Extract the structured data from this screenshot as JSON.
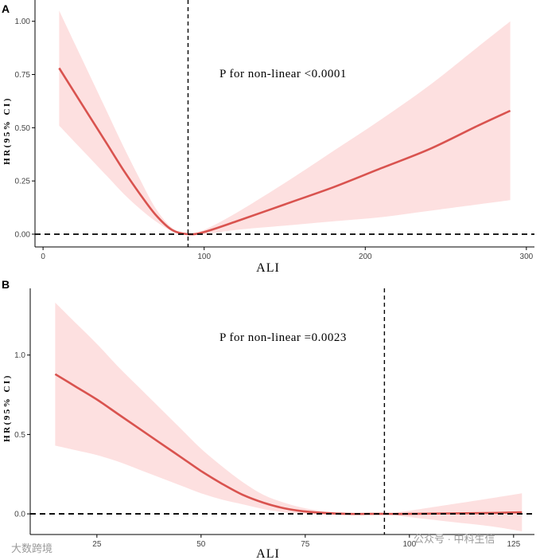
{
  "chart_data": [
    {
      "type": "line",
      "panel": "A",
      "xlabel": "ALI",
      "ylabel": "HR(95% CI)",
      "xlim": [
        -5,
        305
      ],
      "ylim": [
        -0.06,
        1.1
      ],
      "xticks": [
        0,
        100,
        200,
        300
      ],
      "yticks": [
        0.0,
        0.25,
        0.5,
        0.75,
        1.0
      ],
      "ytick_labels": [
        "0.00",
        "0.25",
        "0.50",
        "0.75",
        "1.00"
      ],
      "annotation": "P for non-linear <0.0001",
      "vline_x": 90,
      "hline_y": 0,
      "line_color": "#d9534f",
      "band_color": "#fde0e0",
      "series": [
        {
          "name": "HR",
          "x": [
            10,
            20,
            30,
            40,
            50,
            60,
            70,
            80,
            90,
            100,
            120,
            150,
            180,
            210,
            240,
            270,
            290
          ],
          "y": [
            0.78,
            0.66,
            0.54,
            0.42,
            0.3,
            0.19,
            0.09,
            0.02,
            0.0,
            0.01,
            0.06,
            0.14,
            0.22,
            0.31,
            0.4,
            0.51,
            0.58
          ]
        },
        {
          "name": "95% CI lower",
          "x": [
            10,
            20,
            30,
            40,
            50,
            60,
            70,
            80,
            90,
            100,
            120,
            150,
            180,
            210,
            240,
            270,
            290
          ],
          "y": [
            0.51,
            0.43,
            0.35,
            0.27,
            0.19,
            0.12,
            0.06,
            0.015,
            0.0,
            0.0,
            0.02,
            0.04,
            0.06,
            0.08,
            0.11,
            0.14,
            0.16
          ]
        },
        {
          "name": "95% CI upper",
          "x": [
            10,
            20,
            30,
            40,
            50,
            60,
            70,
            80,
            90,
            100,
            120,
            150,
            180,
            210,
            240,
            270,
            290
          ],
          "y": [
            1.05,
            0.89,
            0.73,
            0.57,
            0.41,
            0.26,
            0.12,
            0.03,
            0.0,
            0.02,
            0.1,
            0.24,
            0.39,
            0.54,
            0.7,
            0.88,
            1.0
          ]
        }
      ]
    },
    {
      "type": "line",
      "panel": "B",
      "xlabel": "ALI",
      "ylabel": "HR(95% CI)",
      "xlim": [
        9,
        130
      ],
      "ylim": [
        -0.13,
        1.42
      ],
      "xticks": [
        25,
        50,
        75,
        100,
        125
      ],
      "yticks": [
        0.0,
        0.5,
        1.0
      ],
      "ytick_labels": [
        "0.0",
        "0.5",
        "1.0"
      ],
      "annotation": "P for non-linear =0.0023",
      "vline_x": 94,
      "hline_y": 0,
      "line_color": "#d9534f",
      "band_color": "#fde0e0",
      "series": [
        {
          "name": "HR",
          "x": [
            15,
            20,
            25,
            30,
            35,
            40,
            45,
            50,
            55,
            60,
            65,
            70,
            75,
            80,
            85,
            90,
            94,
            100,
            110,
            120,
            127
          ],
          "y": [
            0.88,
            0.8,
            0.72,
            0.63,
            0.54,
            0.45,
            0.36,
            0.27,
            0.19,
            0.12,
            0.07,
            0.035,
            0.015,
            0.005,
            0.0,
            0.0,
            0.0,
            0.0,
            0.003,
            0.006,
            0.01
          ]
        },
        {
          "name": "95% CI lower",
          "x": [
            15,
            20,
            25,
            30,
            35,
            40,
            45,
            50,
            55,
            60,
            65,
            70,
            75,
            80,
            85,
            90,
            94,
            100,
            110,
            120,
            127
          ],
          "y": [
            0.43,
            0.4,
            0.37,
            0.33,
            0.28,
            0.23,
            0.18,
            0.13,
            0.09,
            0.06,
            0.03,
            0.01,
            0.0,
            -0.005,
            -0.005,
            0.0,
            0.0,
            -0.02,
            -0.05,
            -0.08,
            -0.11
          ]
        },
        {
          "name": "95% CI upper",
          "x": [
            15,
            20,
            25,
            30,
            35,
            40,
            45,
            50,
            55,
            60,
            65,
            70,
            75,
            80,
            85,
            90,
            94,
            100,
            110,
            120,
            127
          ],
          "y": [
            1.33,
            1.2,
            1.07,
            0.93,
            0.8,
            0.67,
            0.54,
            0.41,
            0.3,
            0.2,
            0.12,
            0.07,
            0.035,
            0.015,
            0.005,
            0.0,
            0.0,
            0.02,
            0.06,
            0.1,
            0.13
          ]
        }
      ]
    }
  ],
  "watermarks": {
    "left": "大数跨境",
    "right": "公众号 · 中科生信"
  }
}
